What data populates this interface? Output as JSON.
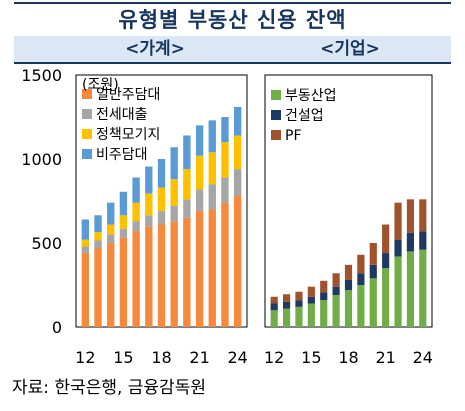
{
  "title": "유형별 부동산 신용 잔액",
  "source": "자료: 한국은행, 금융감독원",
  "chart_data": [
    {
      "type": "bar",
      "stacked": true,
      "panel_title": "<가계>",
      "unit_label": "(조원)",
      "x_ticks": [
        "12",
        "15",
        "18",
        "21",
        "24"
      ],
      "y_ticks": [
        "0",
        "500",
        "1000",
        "1500"
      ],
      "ylim": [
        0,
        1500
      ],
      "legend_position": "top-left",
      "categories": [
        "12",
        "13",
        "14",
        "15",
        "16",
        "17",
        "18",
        "19",
        "20",
        "21",
        "22",
        "23",
        "24"
      ],
      "series": [
        {
          "name": "일반주담대",
          "color": "#f58a3c",
          "values": [
            440,
            470,
            500,
            530,
            570,
            600,
            610,
            630,
            650,
            690,
            700,
            740,
            780
          ]
        },
        {
          "name": "전세대출",
          "color": "#a6a6a6",
          "values": [
            40,
            45,
            50,
            55,
            60,
            65,
            80,
            90,
            110,
            130,
            150,
            150,
            160
          ]
        },
        {
          "name": "정책모기지",
          "color": "#ffc000",
          "values": [
            40,
            50,
            60,
            80,
            110,
            130,
            140,
            160,
            180,
            200,
            190,
            210,
            200
          ]
        },
        {
          "name": "비주담대",
          "color": "#5b9bd5",
          "values": [
            120,
            100,
            130,
            140,
            150,
            160,
            170,
            190,
            200,
            180,
            190,
            150,
            170
          ]
        }
      ]
    },
    {
      "type": "bar",
      "stacked": true,
      "panel_title": "<기업>",
      "x_ticks": [
        "12",
        "15",
        "18",
        "21",
        "24"
      ],
      "ylim": [
        0,
        1500
      ],
      "legend_position": "top-left",
      "categories": [
        "12",
        "13",
        "14",
        "15",
        "16",
        "17",
        "18",
        "19",
        "20",
        "21",
        "22",
        "23",
        "24"
      ],
      "series": [
        {
          "name": "부동산업",
          "color": "#70ad47",
          "values": [
            100,
            110,
            120,
            140,
            160,
            190,
            220,
            250,
            290,
            350,
            420,
            450,
            460
          ]
        },
        {
          "name": "건설업",
          "color": "#1f3864",
          "values": [
            40,
            40,
            40,
            40,
            45,
            50,
            60,
            70,
            80,
            90,
            100,
            110,
            110
          ]
        },
        {
          "name": "PF",
          "color": "#a0522d",
          "values": [
            40,
            45,
            50,
            60,
            70,
            80,
            90,
            110,
            130,
            170,
            220,
            200,
            190
          ]
        }
      ]
    }
  ]
}
